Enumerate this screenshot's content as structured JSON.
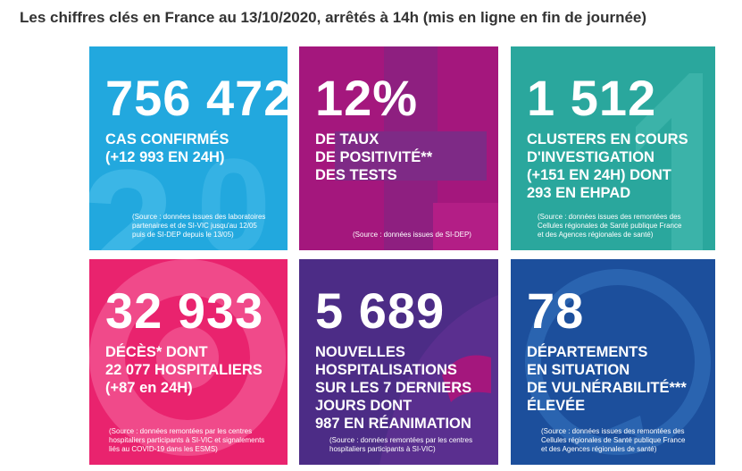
{
  "header": {
    "title": "Les chiffres clés en France au 13/10/2020, arrêtés à 14h (mis en ligne en fin de journée)"
  },
  "tiles": [
    {
      "number": "756 472",
      "label": [
        "CAS CONFIRMÉS",
        "(+12 993 EN 24H)"
      ],
      "source": [
        "(Source : données issues des laboratoires",
        "partenaires et de SI-VIC jusqu'au 12/05",
        "puis de SI-DEP depuis le 13/05)"
      ]
    },
    {
      "number": "12%",
      "label": [
        "DE TAUX",
        "DE POSITIVITÉ**",
        "DES TESTS"
      ],
      "source": [
        "(Source : données issues de SI-DEP)"
      ]
    },
    {
      "number": "1 512",
      "label": [
        "CLUSTERS EN COURS",
        "D'INVESTIGATION",
        "(+151 EN 24H) DONT",
        "293 EN EHPAD"
      ],
      "source": [
        "(Source : données issues des remontées des",
        "Cellules régionales de Santé publique France",
        "et des Agences régionales de santé)"
      ]
    },
    {
      "number": "32 933",
      "label": [
        "DÉCÈS* DONT",
        "22 077 HOSPITALIERS",
        "(+87 en 24H)"
      ],
      "source": [
        "(Source : données remontées par les centres",
        "hospitaliers participants à SI-VIC et signalements",
        "liés au COVID-19 dans les ESMS)"
      ]
    },
    {
      "number": "5 689",
      "label": [
        "NOUVELLES",
        "HOSPITALISATIONS",
        "SUR LES 7 DERNIERS",
        "JOURS DONT",
        "987 EN RÉANIMATION"
      ],
      "source": [
        "(Source : données remontées par les centres",
        "hospitaliers participants à SI-VIC)"
      ]
    },
    {
      "number": "78",
      "label": [
        "DÉPARTEMENTS",
        "EN SITUATION",
        "DE VULNÉRABILITÉ***",
        "ÉLEVÉE"
      ],
      "source": [
        "(Source : données issues des remontées des",
        "Cellules régionales de Santé publique France",
        "et des Agences régionales de santé)"
      ]
    }
  ]
}
